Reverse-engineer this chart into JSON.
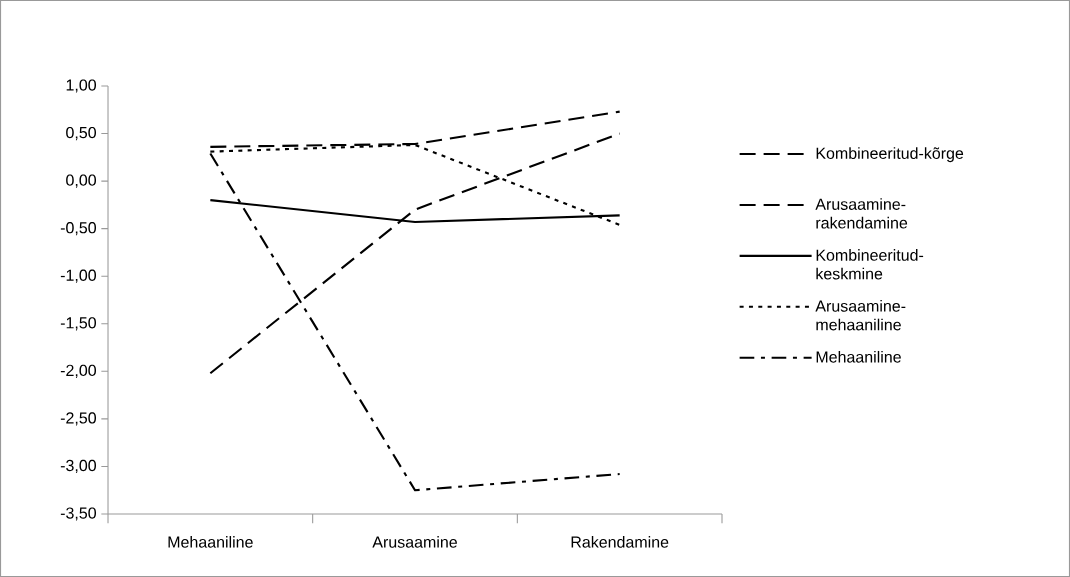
{
  "chart_data": {
    "type": "line",
    "categories": [
      "Mehaaniline",
      "Arusaamine",
      "Rakendamine"
    ],
    "series": [
      {
        "name": "Kombineeritud-kõrge",
        "color": "#000000",
        "line_style": "dashed",
        "values": [
          0.36,
          0.39,
          0.73
        ]
      },
      {
        "name": "Arusaamine-rakendamine",
        "color": "#000000",
        "line_style": "dashed",
        "values": [
          -2.02,
          -0.3,
          0.5
        ]
      },
      {
        "name": "Kombineeritud-keskmine",
        "color": "#000000",
        "line_style": "solid",
        "values": [
          -0.2,
          -0.43,
          -0.36
        ]
      },
      {
        "name": "Arusaamine-mehaaniline",
        "color": "#000000",
        "line_style": "dotted",
        "values": [
          0.31,
          0.38,
          -0.46
        ]
      },
      {
        "name": "Mehaaniline",
        "color": "#000000",
        "line_style": "dashdot",
        "values": [
          0.29,
          -3.25,
          -3.08
        ]
      }
    ],
    "ylim": [
      -3.5,
      1.0
    ],
    "yticks": [
      {
        "value": -3.5,
        "label": "-3,50"
      },
      {
        "value": -3.0,
        "label": "-3,00"
      },
      {
        "value": -2.5,
        "label": "-2,50"
      },
      {
        "value": -2.0,
        "label": "-2,00"
      },
      {
        "value": -1.5,
        "label": "-1,50"
      },
      {
        "value": -1.0,
        "label": "-1,00"
      },
      {
        "value": -0.5,
        "label": "-0,50"
      },
      {
        "value": 0.0,
        "label": "0,00"
      },
      {
        "value": 0.5,
        "label": "0,50"
      },
      {
        "value": 1.0,
        "label": "1,00"
      }
    ],
    "grid": false,
    "legend": "right",
    "marker": "none"
  }
}
